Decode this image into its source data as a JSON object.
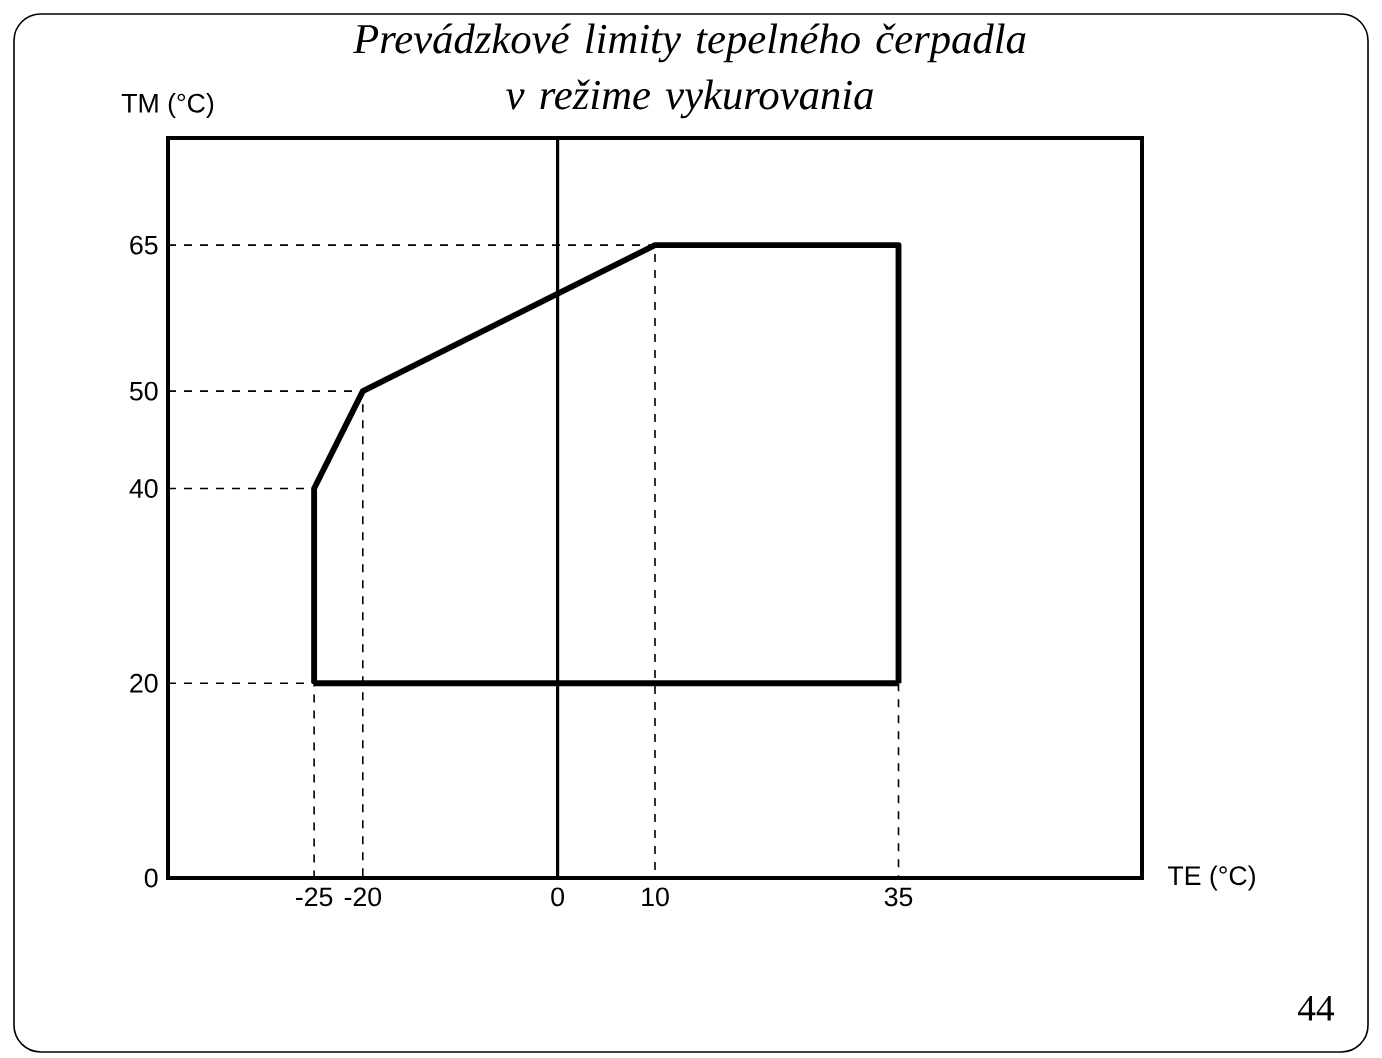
{
  "chart_data": {
    "type": "line",
    "title": "Prevádzkové limity tepelného čerpadla\nv režime vykurovania",
    "xlabel": "TE (°C)",
    "ylabel": "TM (°C)",
    "xlim": [
      -40,
      60
    ],
    "ylim": [
      0,
      76
    ],
    "xticks": [
      -25,
      -20,
      0,
      10,
      35
    ],
    "yticks": [
      0,
      20,
      40,
      50,
      65
    ],
    "grid": false,
    "series": [
      {
        "color": "#000000",
        "line_style": "solid",
        "x": [
          -25,
          -25,
          -20,
          10,
          35,
          35
        ],
        "values": [
          20,
          40,
          50,
          65,
          65,
          20
        ]
      },
      {
        "color": "#000000",
        "line_style": "solid",
        "x": [
          35,
          -25
        ],
        "values": [
          20,
          20
        ]
      },
      {
        "color": "#000000",
        "line_style": "dashed",
        "x": [
          -40,
          10,
          10
        ],
        "values": [
          65,
          65,
          0
        ]
      },
      {
        "color": "#000000",
        "line_style": "dashed",
        "x": [
          -40,
          -20,
          -20
        ],
        "values": [
          50,
          50,
          0
        ]
      },
      {
        "color": "#000000",
        "line_style": "dashed",
        "x": [
          -40,
          -25,
          -25
        ],
        "values": [
          40,
          40,
          0
        ]
      },
      {
        "color": "#000000",
        "line_style": "dashed",
        "x": [
          -40,
          -25
        ],
        "values": [
          20,
          20
        ]
      },
      {
        "color": "#000000",
        "line_style": "dashed",
        "x": [
          35,
          35
        ],
        "values": [
          20,
          0
        ]
      }
    ],
    "ref_lines": [
      {
        "axis": "x",
        "value": 0,
        "color": "#000000",
        "line_style": "solid"
      }
    ],
    "annotations": [
      "44"
    ]
  }
}
